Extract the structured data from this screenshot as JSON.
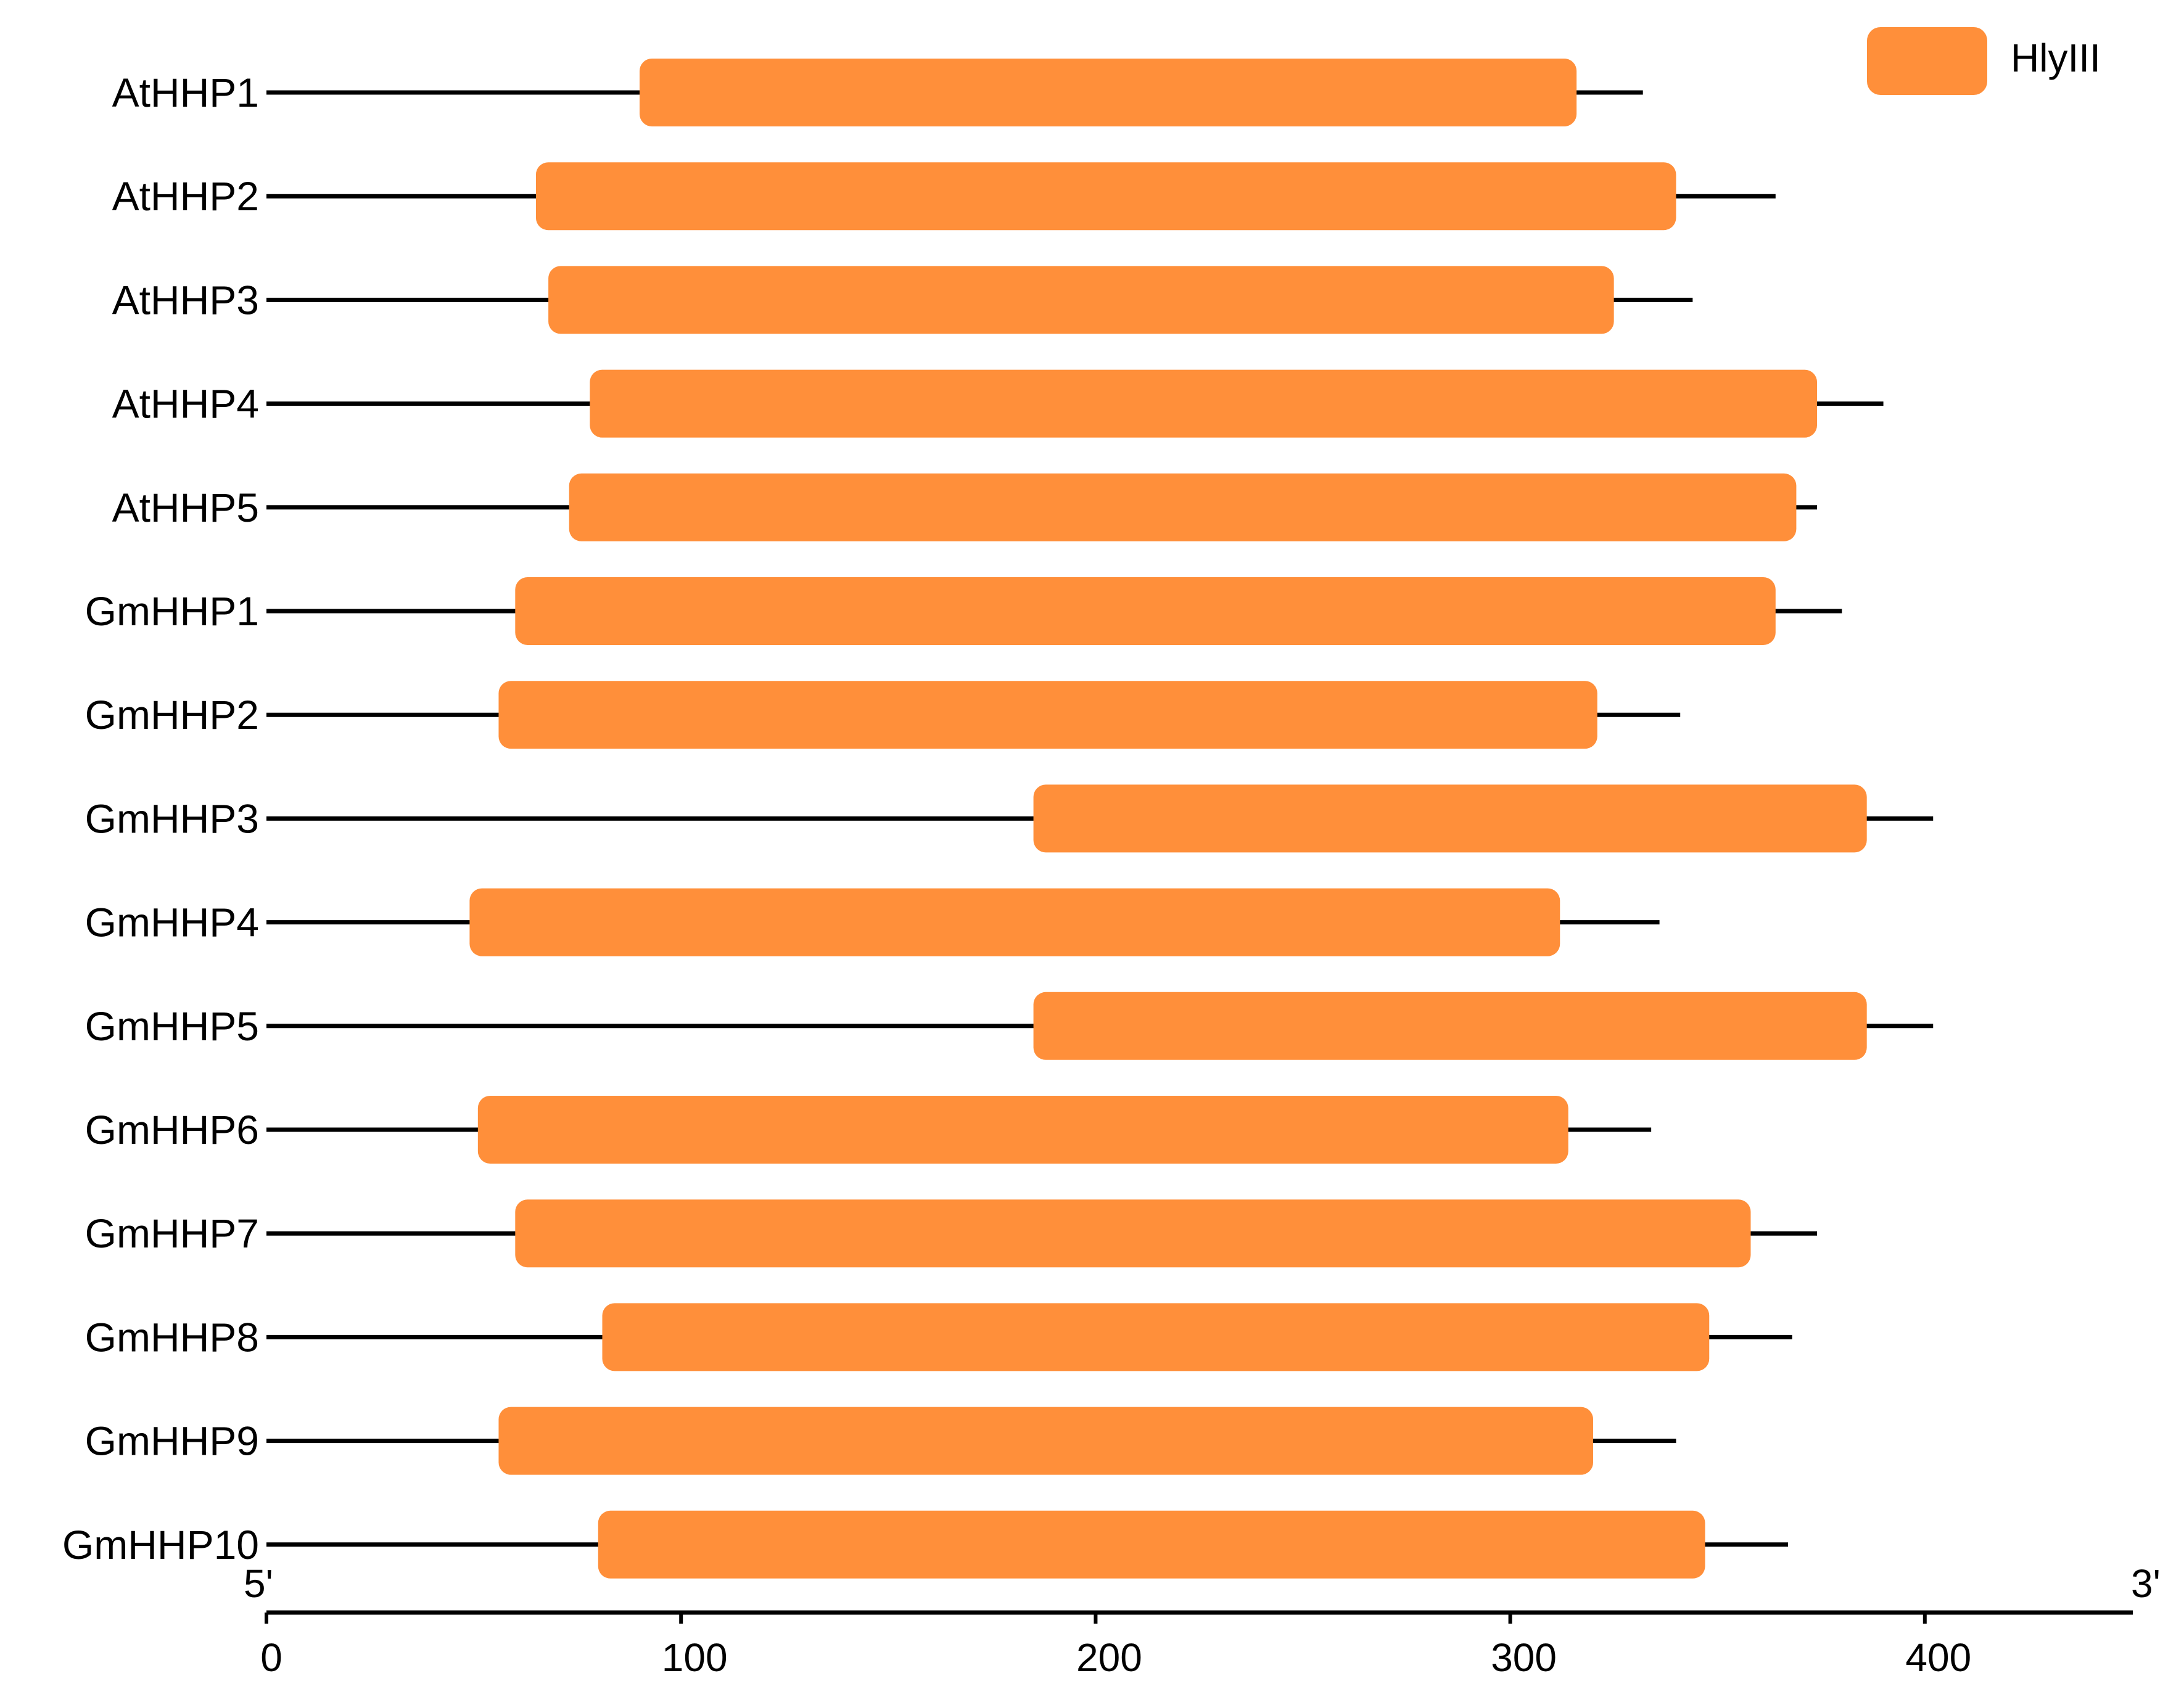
{
  "legend": {
    "label": "HlyIII",
    "color": "#FF8F3A"
  },
  "axis": {
    "five_prime_label": "5'",
    "three_prime_label": "3'",
    "range": [
      0,
      450
    ],
    "ticks": [
      {
        "value": 0,
        "label": "0"
      },
      {
        "value": 100,
        "label": "100"
      },
      {
        "value": 200,
        "label": "200"
      },
      {
        "value": 300,
        "label": "300"
      },
      {
        "value": 400,
        "label": "400"
      }
    ]
  },
  "proteins": [
    {
      "name": "AtHHP1",
      "length": 332,
      "domain_start": 90,
      "domain_end": 316
    },
    {
      "name": "AtHHP2",
      "length": 364,
      "domain_start": 65,
      "domain_end": 340
    },
    {
      "name": "AtHHP3",
      "length": 344,
      "domain_start": 68,
      "domain_end": 325
    },
    {
      "name": "AtHHP4",
      "length": 390,
      "domain_start": 78,
      "domain_end": 374
    },
    {
      "name": "AtHHP5",
      "length": 374,
      "domain_start": 73,
      "domain_end": 369
    },
    {
      "name": "GmHHP1",
      "length": 380,
      "domain_start": 60,
      "domain_end": 364
    },
    {
      "name": "GmHHP2",
      "length": 341,
      "domain_start": 56,
      "domain_end": 321
    },
    {
      "name": "GmHHP3",
      "length": 402,
      "domain_start": 185,
      "domain_end": 386
    },
    {
      "name": "GmHHP4",
      "length": 336,
      "domain_start": 49,
      "domain_end": 312
    },
    {
      "name": "GmHHP5",
      "length": 402,
      "domain_start": 185,
      "domain_end": 386
    },
    {
      "name": "GmHHP6",
      "length": 334,
      "domain_start": 51,
      "domain_end": 314
    },
    {
      "name": "GmHHP7",
      "length": 374,
      "domain_start": 60,
      "domain_end": 358
    },
    {
      "name": "GmHHP8",
      "length": 368,
      "domain_start": 81,
      "domain_end": 348
    },
    {
      "name": "GmHHP9",
      "length": 340,
      "domain_start": 56,
      "domain_end": 320
    },
    {
      "name": "GmHHP10",
      "length": 367,
      "domain_start": 80,
      "domain_end": 347
    }
  ]
}
